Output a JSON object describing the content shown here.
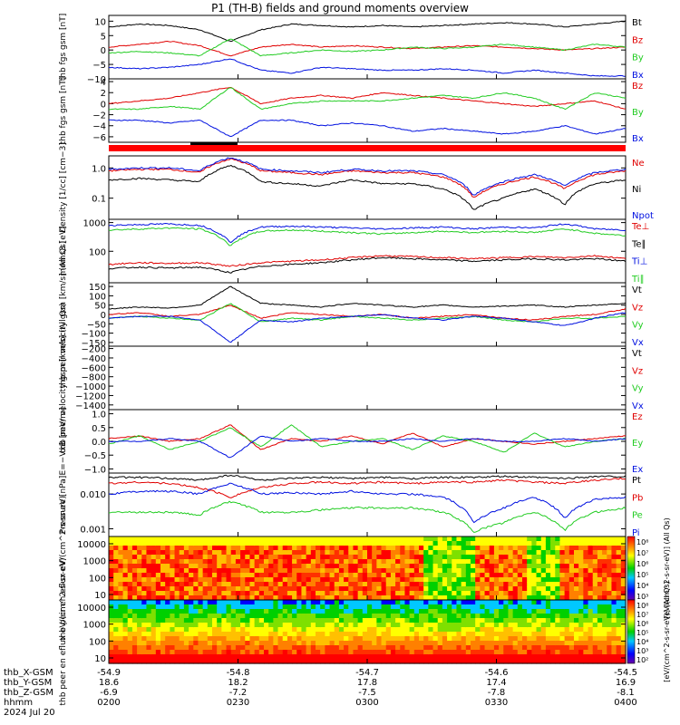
{
  "title": "P1 (TH-B) fields and ground moments overview",
  "date": "2024 Jul 20",
  "colors": {
    "black": "#000000",
    "red": "#e00000",
    "green": "#22cc22",
    "blue": "#0010e0"
  },
  "ephemeris": {
    "labels": [
      "thb_X-GSM",
      "thb_Y-GSM",
      "thb_Z-GSM",
      "hhmm"
    ],
    "columns": [
      [
        "-54.9",
        "18.6",
        "-6.9",
        "0200"
      ],
      [
        "-54.8",
        "18.2",
        "-7.2",
        "0230"
      ],
      [
        "-54.7",
        "17.8",
        "-7.5",
        "0300"
      ],
      [
        "-54.6",
        "17.4",
        "-7.8",
        "0330"
      ],
      [
        "-54.5",
        "16.9",
        "-8.1",
        "0400"
      ]
    ]
  },
  "chart_data": [
    {
      "type": "line",
      "ylabel": "thb fgs gsm [nT]",
      "yticks": [
        "10",
        "5",
        "0",
        "−5",
        "−10"
      ],
      "ylim": [
        -10,
        12
      ],
      "series": [
        {
          "name": "Bt",
          "color": "black",
          "values": [
            8,
            9,
            8.5,
            7,
            3,
            7,
            9,
            8.5,
            8,
            8.5,
            8,
            8.5,
            9,
            9.5,
            9,
            8,
            9,
            10
          ]
        },
        {
          "name": "Bz",
          "color": "red",
          "values": [
            1,
            2,
            3,
            1.5,
            -2,
            1,
            2,
            1,
            1.5,
            1,
            0.5,
            1,
            1.5,
            1,
            0.5,
            0,
            0.5,
            1
          ]
        },
        {
          "name": "By",
          "color": "green",
          "values": [
            -1,
            -0.5,
            -1,
            -2,
            4,
            -2,
            -1,
            0,
            -0.5,
            0,
            1,
            0.5,
            1,
            2,
            1,
            0,
            2,
            1
          ]
        },
        {
          "name": "Bx",
          "color": "blue",
          "values": [
            -6,
            -6.5,
            -6,
            -5,
            -3,
            -7,
            -8,
            -6,
            -6.5,
            -7,
            -7,
            -6.5,
            -7,
            -8,
            -7,
            -8,
            -9,
            -9
          ]
        }
      ]
    },
    {
      "type": "line",
      "ylabel": "thb fgs gsm [nT]",
      "yticks": [
        "4",
        "2",
        "0",
        "−2",
        "−4",
        "−6"
      ],
      "ylim": [
        -7,
        4.5
      ],
      "series": [
        {
          "name": "Bz",
          "color": "red",
          "values": [
            0,
            0.5,
            1,
            2,
            3,
            0,
            1,
            1.5,
            1,
            2,
            1.5,
            1,
            0.5,
            0,
            -0.5,
            0,
            0.5,
            -1
          ]
        },
        {
          "name": "By",
          "color": "green",
          "values": [
            -1,
            -1,
            -0.5,
            -1,
            3,
            -1,
            0,
            0.5,
            0.5,
            0.5,
            1,
            1.5,
            1,
            2,
            1,
            -1,
            2,
            1
          ]
        },
        {
          "name": "Bx",
          "color": "blue",
          "values": [
            -3,
            -3,
            -3.5,
            -3,
            -6,
            -3,
            -3,
            -4,
            -3.5,
            -4,
            -5,
            -4.5,
            -5,
            -5.5,
            -5,
            -4,
            -5.5,
            -4.5
          ]
        }
      ]
    },
    {
      "type": "line",
      "ylabel": "Density [1/cc] [cm−3]",
      "yticks": [
        "1.0",
        "0.1"
      ],
      "log": true,
      "ylim": [
        0.02,
        2.5
      ],
      "series": [
        {
          "name": "Ne",
          "color": "red",
          "values": [
            0.8,
            0.9,
            0.9,
            0.7,
            2,
            0.8,
            0.7,
            0.6,
            0.8,
            0.7,
            0.7,
            0.5,
            0.1,
            0.3,
            0.5,
            0.2,
            0.6,
            0.8
          ]
        },
        {
          "name": "Ni",
          "color": "black",
          "values": [
            0.4,
            0.45,
            0.4,
            0.35,
            1.2,
            0.35,
            0.3,
            0.25,
            0.4,
            0.3,
            0.3,
            0.2,
            0.04,
            0.1,
            0.2,
            0.06,
            0.3,
            0.4
          ]
        },
        {
          "name": "Npot",
          "color": "blue",
          "values": [
            0.9,
            1,
            1,
            0.8,
            2.2,
            0.9,
            0.8,
            0.7,
            0.9,
            0.8,
            0.8,
            0.6,
            0.12,
            0.35,
            0.6,
            0.25,
            0.7,
            0.9
          ]
        }
      ]
    },
    {
      "type": "line",
      "ylabel": "moms3 [eV]",
      "yticks": [
        "1000",
        "100"
      ],
      "log": true,
      "ylim": [
        8,
        1300
      ],
      "series": [
        {
          "name": "Te⊥",
          "color": "red",
          "values": [
            35,
            40,
            38,
            40,
            30,
            40,
            45,
            50,
            60,
            70,
            65,
            60,
            55,
            60,
            65,
            60,
            70,
            55
          ]
        },
        {
          "name": "Te∥",
          "color": "black",
          "values": [
            25,
            28,
            26,
            28,
            18,
            30,
            35,
            40,
            50,
            60,
            55,
            50,
            45,
            50,
            55,
            50,
            55,
            45
          ]
        },
        {
          "name": "Ti⊥",
          "color": "blue",
          "values": [
            800,
            850,
            900,
            800,
            200,
            700,
            750,
            700,
            650,
            600,
            650,
            700,
            600,
            700,
            650,
            900,
            600,
            550
          ]
        },
        {
          "name": "Ti∥",
          "color": "green",
          "values": [
            550,
            600,
            650,
            600,
            150,
            500,
            550,
            500,
            450,
            400,
            450,
            500,
            450,
            500,
            450,
            600,
            420,
            350
          ]
        }
      ]
    },
    {
      "type": "line",
      "ylabel": "thb peir velocity gsm [km/s] (All Qs)",
      "yticks": [
        "150",
        "100",
        "50",
        "0",
        "−50",
        "−100",
        "−150"
      ],
      "ylim": [
        -170,
        170
      ],
      "series": [
        {
          "name": "Vt",
          "color": "black",
          "values": [
            30,
            40,
            35,
            50,
            150,
            60,
            50,
            40,
            60,
            50,
            40,
            50,
            40,
            45,
            50,
            40,
            50,
            60
          ]
        },
        {
          "name": "Vz",
          "color": "red",
          "values": [
            0,
            10,
            -10,
            0,
            50,
            -20,
            10,
            0,
            -10,
            0,
            -20,
            -10,
            0,
            -20,
            -30,
            -10,
            0,
            30
          ]
        },
        {
          "name": "Vy",
          "color": "green",
          "values": [
            -20,
            -10,
            -20,
            -30,
            60,
            -40,
            -20,
            -30,
            -10,
            -20,
            -30,
            -20,
            -10,
            -30,
            -40,
            -20,
            -20,
            -10
          ]
        },
        {
          "name": "Vx",
          "color": "blue",
          "values": [
            -20,
            -10,
            -10,
            -30,
            -150,
            -30,
            -40,
            -20,
            -10,
            0,
            -20,
            -30,
            -10,
            -20,
            -40,
            -60,
            -20,
            10
          ]
        }
      ]
    },
    {
      "type": "line",
      "ylabel": "thb peer velocity gsm [km/s] (All Qs)",
      "yticks": [
        "−200",
        "−400",
        "−600",
        "−800",
        "−1000",
        "−1200",
        "−1400"
      ],
      "ylim": [
        -1500,
        -150
      ],
      "series": [
        {
          "name": "Vt",
          "color": "black",
          "values": []
        },
        {
          "name": "Vz",
          "color": "red",
          "values": []
        },
        {
          "name": "Vy",
          "color": "green",
          "values": []
        },
        {
          "name": "Vx",
          "color": "blue",
          "values": []
        }
      ]
    },
    {
      "type": "line",
      "ylabel": "E=−VxB [mV/m]",
      "yticks": [
        "1.0",
        "0.5",
        "0.0",
        "−0.5",
        "−1.0"
      ],
      "ylim": [
        -1.15,
        1.15
      ],
      "series": [
        {
          "name": "Ez",
          "color": "red",
          "values": [
            0.1,
            0.2,
            0,
            0.1,
            0.6,
            -0.3,
            0.1,
            0,
            0.2,
            -0.1,
            0.3,
            -0.2,
            0.1,
            0,
            -0.1,
            0,
            0.1,
            0.2
          ]
        },
        {
          "name": "Ey",
          "color": "green",
          "values": [
            -0.1,
            0.2,
            -0.3,
            0,
            0.5,
            -0.2,
            0.6,
            -0.2,
            0,
            0.1,
            -0.3,
            0.2,
            0,
            -0.4,
            0.3,
            -0.2,
            0,
            0.1
          ]
        },
        {
          "name": "Ex",
          "color": "blue",
          "values": [
            0,
            0,
            0.1,
            0,
            -0.6,
            0.2,
            0,
            0.1,
            0,
            0,
            0.1,
            0,
            0.1,
            0,
            0,
            0.1,
            0,
            0.1
          ]
        }
      ]
    },
    {
      "type": "line",
      "ylabel": "Pressure [nPa]",
      "yticks": [
        "0.010",
        "0.001"
      ],
      "log": true,
      "ylim": [
        0.0006,
        0.04
      ],
      "series": [
        {
          "name": "Pt",
          "color": "black",
          "values": [
            0.03,
            0.03,
            0.028,
            0.025,
            0.035,
            0.025,
            0.028,
            0.03,
            0.028,
            0.03,
            0.028,
            0.03,
            0.03,
            0.032,
            0.03,
            0.028,
            0.032,
            0.032
          ]
        },
        {
          "name": "Pb",
          "color": "red",
          "values": [
            0.02,
            0.022,
            0.02,
            0.015,
            0.008,
            0.015,
            0.02,
            0.022,
            0.02,
            0.022,
            0.02,
            0.022,
            0.022,
            0.025,
            0.022,
            0.02,
            0.025,
            0.028
          ]
        },
        {
          "name": "Pe",
          "color": "green",
          "values": [
            0.003,
            0.003,
            0.003,
            0.0025,
            0.006,
            0.003,
            0.003,
            0.0035,
            0.004,
            0.004,
            0.004,
            0.003,
            0.0008,
            0.0015,
            0.003,
            0.0009,
            0.003,
            0.004
          ]
        },
        {
          "name": "Pi",
          "color": "blue",
          "values": [
            0.01,
            0.012,
            0.012,
            0.01,
            0.02,
            0.01,
            0.011,
            0.01,
            0.012,
            0.01,
            0.01,
            0.008,
            0.0015,
            0.004,
            0.008,
            0.002,
            0.007,
            0.008
          ]
        }
      ]
    },
    {
      "type": "heatmap",
      "ylabel": "thb peir en eflux eV/(cm^2-s-sr-eV)",
      "yticks": [
        "10000",
        "1000",
        "100",
        "10"
      ],
      "colorbar": {
        "label": "[eV/(cm^2-s-sr-eV)] (All Qs)",
        "ticks": [
          "10⁸",
          "10⁷",
          "10⁶",
          "10⁵",
          "10⁴",
          "10³"
        ]
      }
    },
    {
      "type": "heatmap",
      "ylabel": "thb peer en eflux eV/(cm^2-s-sr-eV)",
      "yticks": [
        "10000",
        "1000",
        "100",
        "10"
      ],
      "colorbar": {
        "label": "[eV/(cm^2-s-sr-eV)] (All Qs)",
        "ticks": [
          "10⁸",
          "10⁷",
          "10⁶",
          "10⁵",
          "10⁴",
          "10³",
          "10²"
        ]
      }
    }
  ]
}
